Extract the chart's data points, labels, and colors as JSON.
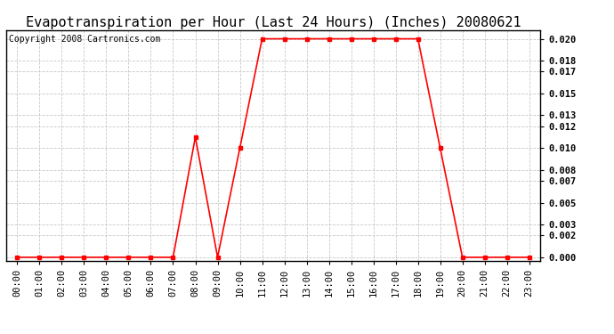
{
  "title": "Evapotranspiration per Hour (Last 24 Hours) (Inches) 20080621",
  "copyright": "Copyright 2008 Cartronics.com",
  "hours": [
    "00:00",
    "01:00",
    "02:00",
    "03:00",
    "04:00",
    "05:00",
    "06:00",
    "07:00",
    "08:00",
    "09:00",
    "10:00",
    "11:00",
    "12:00",
    "13:00",
    "14:00",
    "15:00",
    "16:00",
    "17:00",
    "18:00",
    "19:00",
    "20:00",
    "21:00",
    "22:00",
    "23:00"
  ],
  "values": [
    0.0,
    0.0,
    0.0,
    0.0,
    0.0,
    0.0,
    0.0,
    0.0,
    0.011,
    0.0,
    0.01,
    0.02,
    0.02,
    0.02,
    0.02,
    0.02,
    0.02,
    0.02,
    0.02,
    0.01,
    0.0,
    0.0,
    0.0,
    0.0
  ],
  "line_color": "#ff0000",
  "marker": "s",
  "marker_size": 3,
  "bg_color": "#ffffff",
  "grid_color": "#c8c8c8",
  "yticks": [
    0.0,
    0.002,
    0.003,
    0.005,
    0.007,
    0.008,
    0.01,
    0.012,
    0.013,
    0.015,
    0.017,
    0.018,
    0.02
  ],
  "ylim": [
    -0.0003,
    0.0208
  ],
  "title_fontsize": 11,
  "copyright_fontsize": 7,
  "tick_fontsize": 7.5,
  "title_color": "#000000",
  "tick_label_color": "#000000"
}
